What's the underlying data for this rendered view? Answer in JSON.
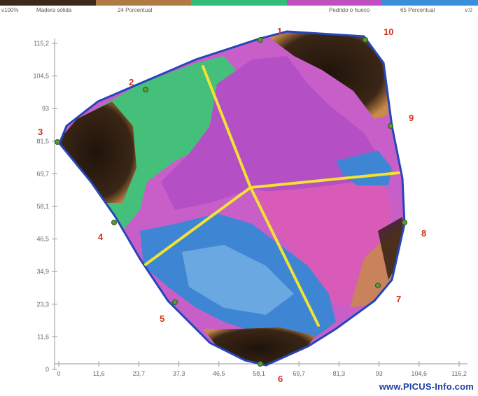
{
  "legend": {
    "colors": [
      "#3b2a1a",
      "#b07a45",
      "#2fbf7a",
      "#c04fc0",
      "#3a8fd8"
    ],
    "labels": [
      "v100%",
      "Madera sólida",
      "24 Porcentual",
      "Pedrido o hueco",
      "65 Porcentual",
      "v:0"
    ]
  },
  "y_ticks": [
    "115,2",
    "104,5",
    "93",
    "81,5",
    "69,7",
    "58,1",
    "46,5",
    "34,9",
    "23,3",
    "11,6",
    "0"
  ],
  "x_ticks": [
    "0",
    "11,6",
    "23,7",
    "37,3",
    "46,5",
    "58,1",
    "69,7",
    "81,3",
    "93",
    "104,6",
    "116,2"
  ],
  "sensor_labels": [
    "1",
    "2",
    "3",
    "4",
    "5",
    "6",
    "7",
    "8",
    "9",
    "10"
  ],
  "watermark": "www.PICUS-Info.com",
  "zone_colors": {
    "solid": "#2a1a10",
    "solid_edge": "#c88a4a",
    "green": "#44c07a",
    "magenta": "#b44fc6",
    "pink": "#d85bb8",
    "blue": "#3e86d4",
    "light_blue": "#7db6e8",
    "outline": "#2446b8",
    "lines": "#f2e232"
  }
}
